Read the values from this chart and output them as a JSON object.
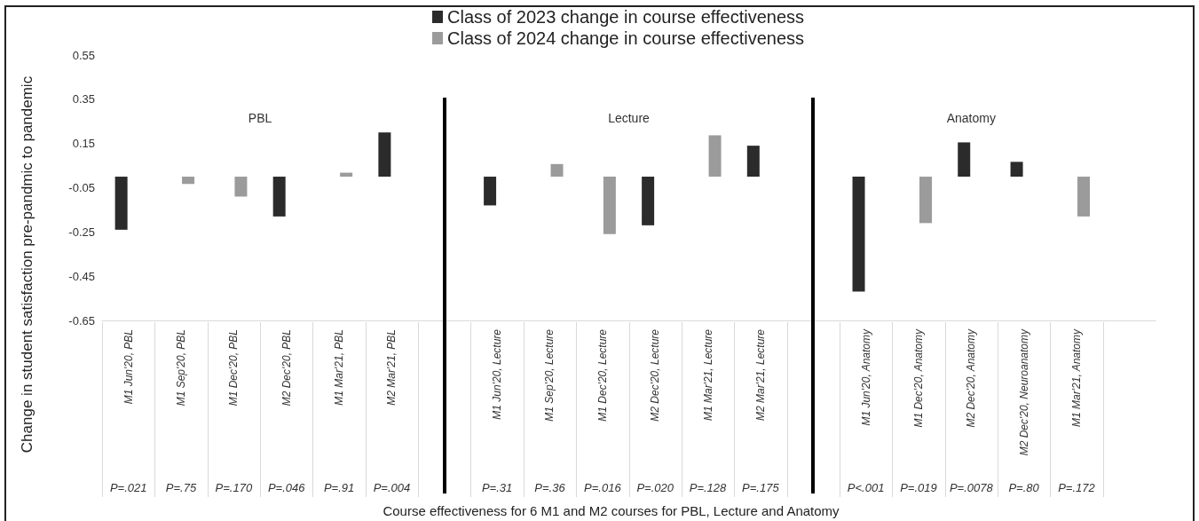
{
  "chart_data": {
    "type": "bar",
    "xlabel": "Course effectiveness for 6 M1 and M2 courses for PBL, Lecture and Anatomy",
    "ylabel": "Change in student satisfaction pre-pandmic to pandemic",
    "categories": [
      "M1 Jun'20, PBL",
      "M1 Sep'20, PBL",
      "M1 Dec'20, PBL",
      "M2 Dec'20, PBL",
      "M1 Mar'21, PBL",
      "M2 Mar'21, PBL",
      null,
      "M1 Jun'20, Lecture",
      "M1 Sep'20, Lecture",
      "M1 Dec'20, Lecture",
      "M2 Dec'20, Lecture",
      "M1 Mar'21, Lecture",
      "M2 Mar'21, Lecture",
      null,
      "M1 Jun'20, Anatomy",
      "M1 Dec'20, Anatomy",
      "M2 Dec'20, Anatomy",
      "M2 Dec'20, Neuroanatomy",
      "M1 Mar'21, Anatomy",
      null
    ],
    "series": [
      {
        "name": "Class of 2023 change in course effectiveness",
        "color": "#2b2b2b",
        "values": [
          -0.24,
          null,
          null,
          -0.18,
          null,
          0.2,
          null,
          -0.13,
          null,
          null,
          -0.22,
          null,
          0.14,
          null,
          -0.52,
          null,
          0.155,
          0.067,
          null,
          null
        ]
      },
      {
        "name": "Class of 2024 change in course effectiveness",
        "color": "#9b9b9b",
        "values": [
          null,
          -0.033,
          -0.09,
          null,
          0.018,
          null,
          null,
          null,
          0.057,
          -0.26,
          null,
          0.187,
          null,
          null,
          null,
          -0.21,
          null,
          null,
          -0.18,
          null
        ]
      }
    ],
    "ylim": [
      -0.65,
      0.55
    ],
    "yticks": [
      0.55,
      0.35,
      0.15,
      -0.05,
      -0.25,
      -0.45,
      -0.65
    ],
    "grid": false,
    "legend": "top",
    "annotations": [
      "PBL",
      "Lecture",
      "Anatomy",
      "P=.021",
      "P=.75",
      "P=.170",
      "P=.046",
      "P=.91",
      "P=.004",
      "P=.31",
      "P=.36",
      "P=.016",
      "P=.020",
      "P=.128",
      "P=.175",
      "P<.001",
      "P=.019",
      "P=.0078",
      "P=.80",
      "P=.172"
    ]
  }
}
